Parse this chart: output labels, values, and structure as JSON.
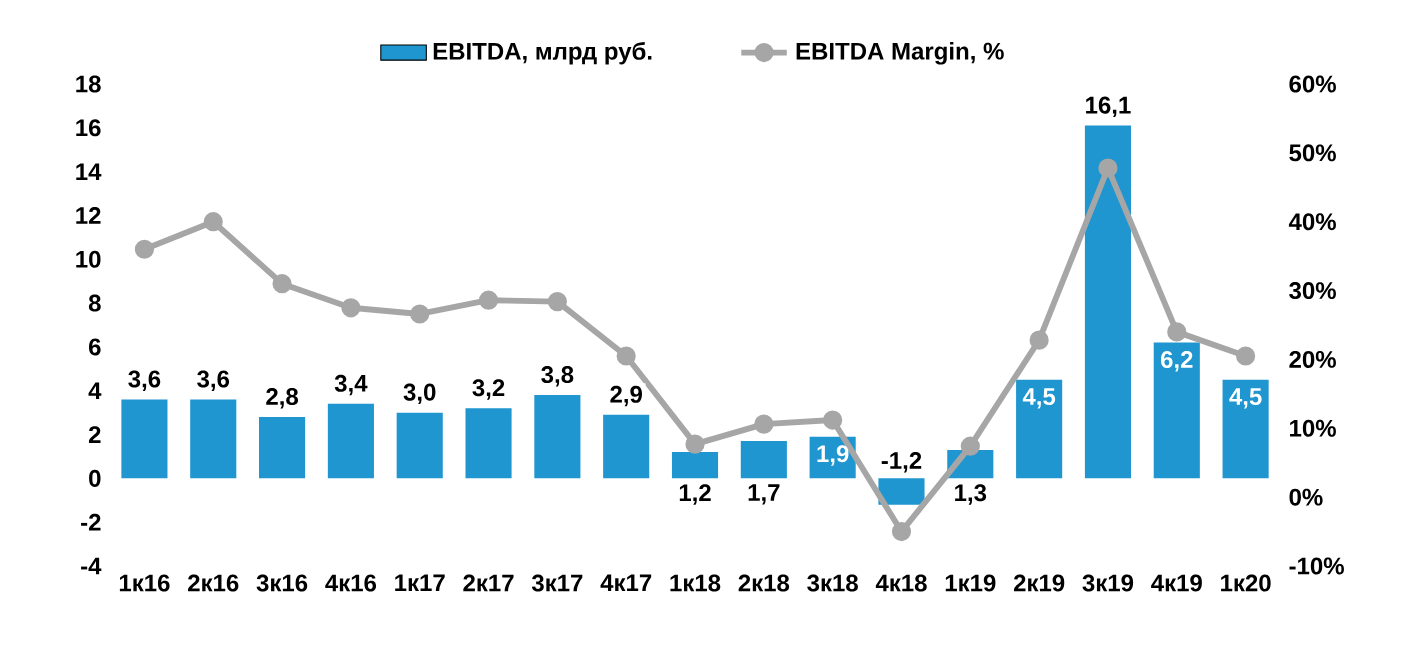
{
  "chart_data": {
    "type": "bar",
    "categories": [
      "1к16",
      "2к16",
      "3к16",
      "4к16",
      "1к17",
      "2к17",
      "3к17",
      "4к17",
      "1к18",
      "2к18",
      "3к18",
      "4к18",
      "1к19",
      "2к19",
      "3к19",
      "4к19",
      "1к20"
    ],
    "series": [
      {
        "name": "EBITDA, млрд руб.",
        "color": "#1f96cf",
        "values": [
          3.6,
          3.6,
          2.8,
          3.4,
          3.0,
          3.2,
          3.8,
          2.9,
          1.2,
          1.7,
          1.9,
          -1.2,
          1.3,
          4.5,
          16.1,
          6.2,
          4.5
        ],
        "value_labels": [
          "3,6",
          "3,6",
          "2,8",
          "3,4",
          "3,0",
          "3,2",
          "3,8",
          "2,9",
          "1,2",
          "1,7",
          "1,9",
          "-1,2",
          "1,3",
          "4,5",
          "16,1",
          "6,2",
          "4,5"
        ]
      },
      {
        "name": "EBITDA Margin, %",
        "type": "line",
        "axis": "y2",
        "color": "#a6a6a6",
        "marker": "circle",
        "values": [
          36,
          40,
          31,
          27.5,
          26.6,
          28.6,
          28.4,
          20.5,
          7.7,
          10.6,
          11.2,
          -5,
          7.4,
          22.8,
          47.8,
          24,
          20.5
        ]
      }
    ],
    "ylim": [
      -4,
      18
    ],
    "yticks": [
      -4,
      -2,
      0,
      2,
      4,
      6,
      8,
      10,
      12,
      14,
      16,
      18
    ],
    "y2lim": [
      -10,
      60
    ],
    "y2ticks": [
      {
        "value": -10,
        "label": "-10%"
      },
      {
        "value": 0,
        "label": "0%"
      },
      {
        "value": 10,
        "label": "10%"
      },
      {
        "value": 20,
        "label": "20%"
      },
      {
        "value": 30,
        "label": "30%"
      },
      {
        "value": 40,
        "label": "40%"
      },
      {
        "value": 50,
        "label": "50%"
      },
      {
        "value": 60,
        "label": "60%"
      }
    ],
    "legend": "top",
    "grid": false
  }
}
